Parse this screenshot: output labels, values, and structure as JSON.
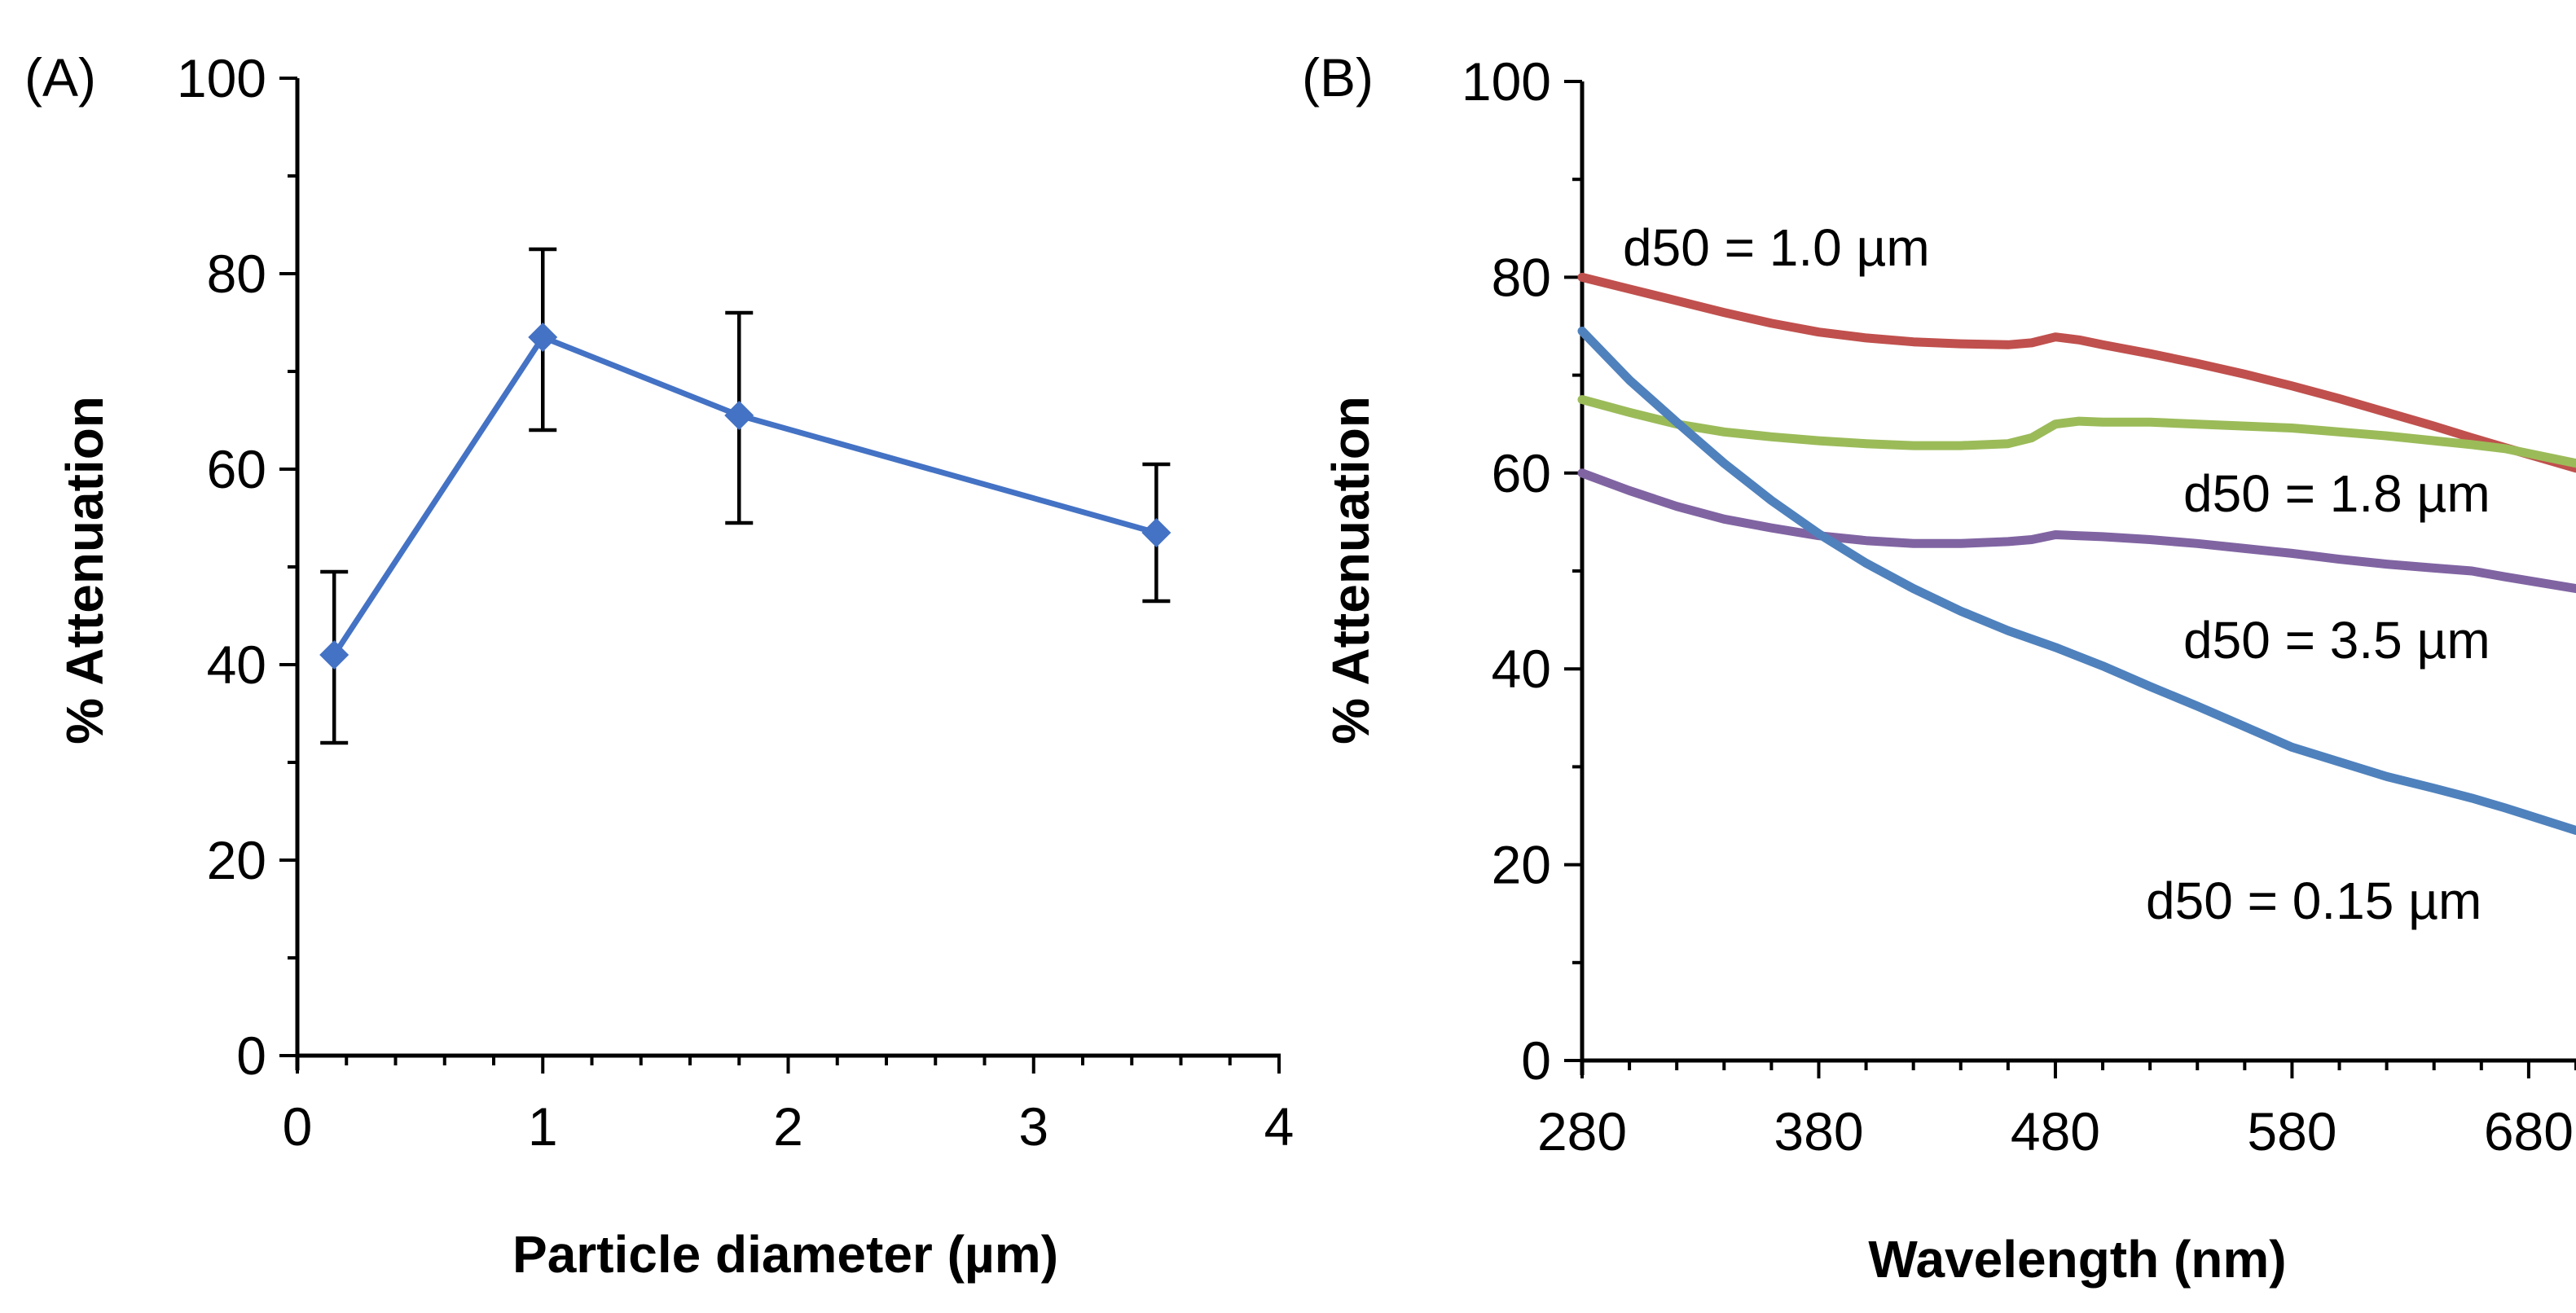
{
  "chart_data": [
    {
      "panel": "(A)",
      "type": "line",
      "xlabel": "Particle diameter (µm)",
      "ylabel": "% Attenuation",
      "xlim": [
        0,
        4
      ],
      "ylim": [
        0,
        100
      ],
      "x_ticks": [
        "0",
        "1",
        "2",
        "3",
        "4"
      ],
      "y_ticks": [
        "0",
        "20",
        "40",
        "60",
        "80",
        "100"
      ],
      "grid": false,
      "color": "#4472c4",
      "series": [
        {
          "name": "% Attenuation",
          "x": [
            0.15,
            1.0,
            1.8,
            3.5
          ],
          "y": [
            41,
            73.5,
            65.5,
            53.5
          ],
          "err_low": [
            32,
            64,
            54.5,
            46.5
          ],
          "err_high": [
            49.5,
            82.5,
            76,
            60.5
          ]
        }
      ]
    },
    {
      "panel": "(B)",
      "type": "line",
      "xlabel": "Wavelength (nm)",
      "ylabel": "% Attenuation",
      "xlim": [
        280,
        700
      ],
      "ylim": [
        0,
        100
      ],
      "x_ticks": [
        "280",
        "380",
        "480",
        "580",
        "680"
      ],
      "y_ticks": [
        "0",
        "20",
        "40",
        "60",
        "80",
        "100"
      ],
      "grid": false,
      "series": [
        {
          "name": "d50 = 1.0 µm",
          "color": "#c0504d",
          "x": [
            280,
            300,
            320,
            340,
            360,
            380,
            400,
            420,
            440,
            460,
            470,
            480,
            490,
            500,
            520,
            540,
            560,
            580,
            600,
            620,
            640,
            656,
            670,
            700
          ],
          "y": [
            80,
            78.8,
            77.6,
            76.4,
            75.3,
            74.4,
            73.8,
            73.4,
            73.2,
            73.1,
            73.3,
            73.9,
            73.6,
            73.1,
            72.2,
            71.2,
            70.1,
            68.9,
            67.6,
            66.2,
            64.8,
            63.6,
            62.6,
            60.5
          ]
        },
        {
          "name": "d50 = 1.8 µm",
          "color": "#9bbb59",
          "x": [
            280,
            300,
            320,
            340,
            360,
            380,
            400,
            420,
            440,
            460,
            470,
            480,
            490,
            500,
            520,
            540,
            560,
            580,
            600,
            620,
            640,
            656,
            670,
            700
          ],
          "y": [
            67.5,
            66.2,
            65,
            64.2,
            63.7,
            63.3,
            63,
            62.8,
            62.8,
            63,
            63.6,
            65,
            65.3,
            65.2,
            65.2,
            65,
            64.8,
            64.6,
            64.2,
            63.8,
            63.3,
            62.9,
            62.5,
            61
          ]
        },
        {
          "name": "d50 = 3.5 µm",
          "color": "#8064a2",
          "x": [
            280,
            300,
            320,
            340,
            360,
            380,
            400,
            420,
            440,
            460,
            470,
            480,
            490,
            500,
            520,
            540,
            560,
            580,
            600,
            620,
            640,
            656,
            670,
            700
          ],
          "y": [
            60,
            58.2,
            56.6,
            55.3,
            54.4,
            53.6,
            53.1,
            52.8,
            52.8,
            53,
            53.2,
            53.7,
            53.6,
            53.5,
            53.2,
            52.8,
            52.3,
            51.8,
            51.2,
            50.7,
            50.3,
            50,
            49.4,
            48.2
          ]
        },
        {
          "name": "d50 = 0.15 µm",
          "color": "#4f81bd",
          "x": [
            280,
            300,
            320,
            340,
            360,
            380,
            400,
            420,
            440,
            460,
            480,
            500,
            520,
            540,
            560,
            580,
            600,
            620,
            640,
            656,
            670,
            700
          ],
          "y": [
            74.5,
            69.5,
            65.2,
            61,
            57.2,
            53.8,
            50.8,
            48.2,
            45.9,
            43.9,
            42.2,
            40.3,
            38.2,
            36.2,
            34.1,
            32,
            30.5,
            29,
            27.8,
            26.8,
            25.8,
            23.5
          ]
        }
      ]
    }
  ]
}
